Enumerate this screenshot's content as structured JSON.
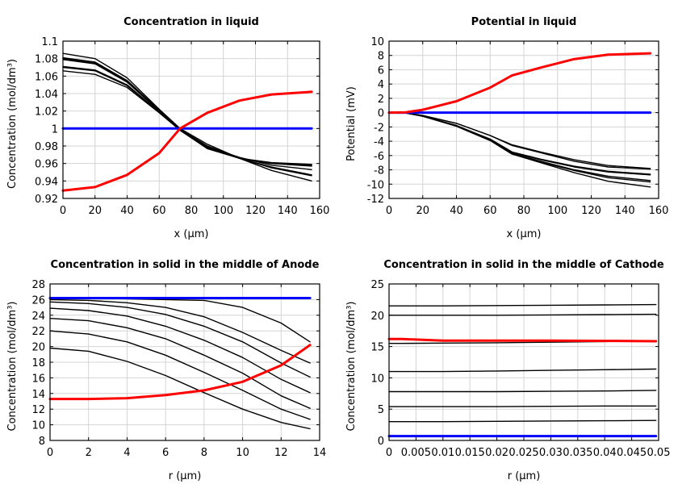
{
  "chart_data": [
    {
      "type": "line",
      "title": "Concentration in liquid",
      "xlabel": "x (µm)",
      "ylabel": "Concentration (mol/dm³)",
      "xlim": [
        0,
        160
      ],
      "ylim": [
        0.92,
        1.1
      ],
      "xticks": [
        "0",
        "20",
        "40",
        "60",
        "80",
        "100",
        "120",
        "140",
        "160"
      ],
      "yticks": [
        "0.92",
        "0.94",
        "0.96",
        "0.98",
        "1",
        "1.02",
        "1.04",
        "1.06",
        "1.08",
        "1.1"
      ],
      "grid": true,
      "x": [
        0,
        20,
        40,
        60,
        73,
        90,
        110,
        130,
        155
      ],
      "series": [
        {
          "color": "#000000",
          "values": [
            1.086,
            1.08,
            1.058,
            1.022,
            1.0,
            0.982,
            0.966,
            0.952,
            0.94
          ]
        },
        {
          "color": "#000000",
          "values": [
            1.081,
            1.076,
            1.055,
            1.021,
            0.999,
            0.98,
            0.966,
            0.955,
            0.946
          ]
        },
        {
          "color": "#000000",
          "values": [
            1.08,
            1.075,
            1.054,
            1.02,
            0.999,
            0.98,
            0.966,
            0.956,
            0.947
          ]
        },
        {
          "color": "#000000",
          "values": [
            1.079,
            1.074,
            1.053,
            1.02,
            0.999,
            0.979,
            0.967,
            0.958,
            0.953
          ]
        },
        {
          "color": "#000000",
          "values": [
            1.071,
            1.067,
            1.05,
            1.019,
            0.998,
            0.978,
            0.966,
            0.96,
            0.957
          ]
        },
        {
          "color": "#000000",
          "values": [
            1.07,
            1.066,
            1.049,
            1.019,
            0.998,
            0.978,
            0.966,
            0.96,
            0.958
          ]
        },
        {
          "color": "#000000",
          "values": [
            1.066,
            1.062,
            1.047,
            1.018,
            0.998,
            0.977,
            0.966,
            0.961,
            0.959
          ]
        },
        {
          "color": "#0000ff",
          "values": [
            1.0,
            1.0,
            1.0,
            1.0,
            1.0,
            1.0,
            1.0,
            1.0,
            1.0
          ]
        },
        {
          "color": "#ff0000",
          "values": [
            0.929,
            0.933,
            0.947,
            0.972,
            1.0,
            1.018,
            1.032,
            1.039,
            1.042
          ]
        }
      ]
    },
    {
      "type": "line",
      "title": "Potential in liquid",
      "xlabel": "x (µm)",
      "ylabel": "Potential (mV)",
      "xlim": [
        0,
        160
      ],
      "ylim": [
        -12,
        10
      ],
      "xticks": [
        "0",
        "20",
        "40",
        "60",
        "80",
        "100",
        "120",
        "140",
        "160"
      ],
      "yticks": [
        "-12",
        "-10",
        "-8",
        "-6",
        "-4",
        "-2",
        "0",
        "2",
        "4",
        "6",
        "8",
        "10"
      ],
      "grid": true,
      "x": [
        0,
        10,
        20,
        40,
        60,
        73,
        90,
        110,
        130,
        155
      ],
      "series": [
        {
          "color": "#000000",
          "values": [
            0,
            -0.05,
            -0.4,
            -1.5,
            -3.2,
            -4.5,
            -5.5,
            -6.6,
            -7.4,
            -7.8
          ]
        },
        {
          "color": "#000000",
          "values": [
            0,
            -0.05,
            -0.4,
            -1.5,
            -3.2,
            -4.6,
            -5.6,
            -6.8,
            -7.6,
            -7.9
          ]
        },
        {
          "color": "#000000",
          "values": [
            0,
            -0.05,
            -0.5,
            -1.8,
            -3.7,
            -5.5,
            -6.5,
            -7.5,
            -8.2,
            -8.6
          ]
        },
        {
          "color": "#000000",
          "values": [
            0,
            -0.05,
            -0.5,
            -1.8,
            -3.8,
            -5.6,
            -6.6,
            -7.6,
            -8.3,
            -8.7
          ]
        },
        {
          "color": "#000000",
          "values": [
            0,
            -0.05,
            -0.5,
            -1.8,
            -3.8,
            -5.7,
            -6.8,
            -8.0,
            -8.9,
            -9.5
          ]
        },
        {
          "color": "#000000",
          "values": [
            0,
            -0.05,
            -0.5,
            -1.9,
            -3.9,
            -5.8,
            -6.9,
            -8.1,
            -9.1,
            -9.7
          ]
        },
        {
          "color": "#000000",
          "values": [
            0,
            -0.05,
            -0.5,
            -1.9,
            -3.9,
            -5.8,
            -7.0,
            -8.4,
            -9.6,
            -10.4
          ]
        },
        {
          "color": "#0000ff",
          "values": [
            0,
            0,
            0,
            0,
            0,
            0,
            0,
            0,
            0,
            0
          ]
        },
        {
          "color": "#ff0000",
          "values": [
            0,
            0.05,
            0.4,
            1.6,
            3.5,
            5.2,
            6.3,
            7.5,
            8.1,
            8.3
          ]
        }
      ]
    },
    {
      "type": "line",
      "title": "Concentration in solid in the middle of Anode",
      "xlabel": "r (µm)",
      "ylabel": "Concentration (mol/dm³)",
      "xlim": [
        0,
        14
      ],
      "ylim": [
        8,
        28
      ],
      "xticks": [
        "0",
        "2",
        "4",
        "6",
        "8",
        "10",
        "12",
        "14"
      ],
      "yticks": [
        "8",
        "10",
        "12",
        "14",
        "16",
        "18",
        "20",
        "22",
        "24",
        "26",
        "28"
      ],
      "grid": true,
      "x": [
        0,
        2,
        4,
        6,
        8,
        10,
        12,
        13.5
      ],
      "series": [
        {
          "color": "#000000",
          "values": [
            26.15,
            26.15,
            26.1,
            26.0,
            25.9,
            25.0,
            23.0,
            20.6
          ]
        },
        {
          "color": "#000000",
          "values": [
            26.0,
            25.9,
            25.6,
            25.0,
            23.8,
            21.8,
            19.5,
            17.9
          ]
        },
        {
          "color": "#000000",
          "values": [
            25.7,
            25.5,
            25.0,
            24.1,
            22.6,
            20.6,
            17.9,
            16.1
          ]
        },
        {
          "color": "#000000",
          "values": [
            24.9,
            24.6,
            23.9,
            22.6,
            20.8,
            18.6,
            15.8,
            14.1
          ]
        },
        {
          "color": "#000000",
          "values": [
            23.6,
            23.3,
            22.4,
            21.0,
            18.9,
            16.6,
            13.7,
            12.1
          ]
        },
        {
          "color": "#000000",
          "values": [
            22.0,
            21.6,
            20.6,
            18.9,
            16.7,
            14.4,
            12.0,
            10.7
          ]
        },
        {
          "color": "#000000",
          "values": [
            19.8,
            19.4,
            18.1,
            16.3,
            14.1,
            12.0,
            10.3,
            9.5
          ]
        },
        {
          "color": "#0000ff",
          "values": [
            26.2,
            26.2,
            26.2,
            26.2,
            26.2,
            26.2,
            26.2,
            26.2
          ]
        },
        {
          "color": "#ff0000",
          "values": [
            13.3,
            13.3,
            13.4,
            13.8,
            14.4,
            15.5,
            17.6,
            20.2
          ]
        }
      ]
    },
    {
      "type": "line",
      "title": "Concentration in solid in the middle of Cathode",
      "xlabel": "r (µm)",
      "ylabel": "Concentration (mol/dm³)",
      "xlim": [
        0,
        0.05
      ],
      "ylim": [
        0,
        25
      ],
      "xticks": [
        "0",
        "0.005",
        "0.01",
        "0.015",
        "0.02",
        "0.025",
        "0.03",
        "0.035",
        "0.04",
        "0.045",
        "0.05"
      ],
      "yticks": [
        "0",
        "5",
        "10",
        "15",
        "20",
        "25"
      ],
      "grid": true,
      "x": [
        0,
        0.0025,
        0.01,
        0.02,
        0.03,
        0.04,
        0.0495
      ],
      "series": [
        {
          "color": "#000000",
          "values": [
            21.5,
            21.5,
            21.5,
            21.55,
            21.6,
            21.65,
            21.7
          ]
        },
        {
          "color": "#000000",
          "values": [
            20.0,
            20.0,
            20.0,
            20.0,
            20.05,
            20.1,
            20.15
          ]
        },
        {
          "color": "#000000",
          "values": [
            15.5,
            15.5,
            15.55,
            15.6,
            15.7,
            15.8,
            15.9
          ]
        },
        {
          "color": "#000000",
          "values": [
            11.0,
            11.0,
            11.0,
            11.1,
            11.2,
            11.3,
            11.4
          ]
        },
        {
          "color": "#000000",
          "values": [
            7.8,
            7.8,
            7.8,
            7.8,
            7.85,
            7.9,
            8.0
          ]
        },
        {
          "color": "#000000",
          "values": [
            5.4,
            5.4,
            5.4,
            5.4,
            5.45,
            5.5,
            5.5
          ]
        },
        {
          "color": "#000000",
          "values": [
            3.0,
            3.0,
            3.0,
            3.05,
            3.1,
            3.15,
            3.2
          ]
        },
        {
          "color": "#0000ff",
          "values": [
            0.7,
            0.7,
            0.7,
            0.7,
            0.7,
            0.7,
            0.7
          ]
        },
        {
          "color": "#ff0000",
          "values": [
            16.2,
            16.2,
            15.95,
            15.95,
            15.95,
            15.9,
            15.85
          ]
        }
      ]
    }
  ]
}
